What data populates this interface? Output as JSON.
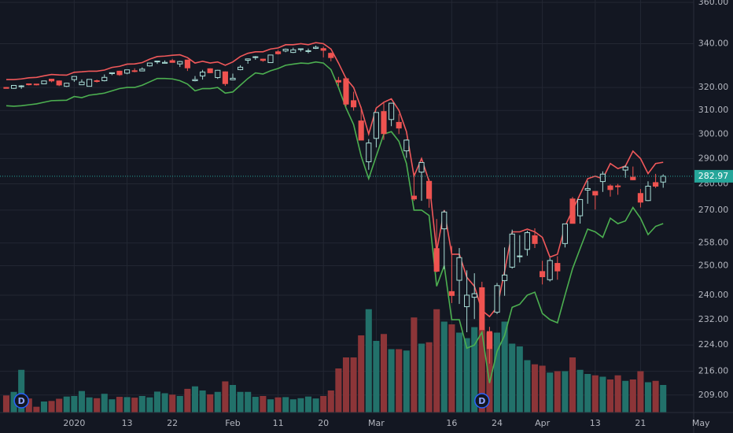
{
  "chart_data": {
    "type": "candlestick",
    "log_scale": true,
    "grid": true,
    "ylim": [
      204,
      361.2
    ],
    "yticks": [
      {
        "value": 360,
        "label": "360.00"
      },
      {
        "value": 340,
        "label": "340.00"
      },
      {
        "value": 320,
        "label": "320.00"
      },
      {
        "value": 310,
        "label": "310.00"
      },
      {
        "value": 300,
        "label": "300.00"
      },
      {
        "value": 290,
        "label": "290.00"
      },
      {
        "value": 280,
        "label": "280.00"
      },
      {
        "value": 270,
        "label": "270.00"
      },
      {
        "value": 258,
        "label": "258.00"
      },
      {
        "value": 250,
        "label": "250.00"
      },
      {
        "value": 240,
        "label": "240.00"
      },
      {
        "value": 232,
        "label": "232.00"
      },
      {
        "value": 224,
        "label": "224.00"
      },
      {
        "value": 216,
        "label": "216.00"
      },
      {
        "value": 209,
        "label": "209.00"
      }
    ],
    "xlim": [
      -0.83,
      91.04
    ],
    "xticks": [
      {
        "value": 9,
        "label": "2020"
      },
      {
        "value": 16,
        "label": "13"
      },
      {
        "value": 22,
        "label": "22"
      },
      {
        "value": 30,
        "label": "Feb"
      },
      {
        "value": 36,
        "label": "11"
      },
      {
        "value": 42,
        "label": "20"
      },
      {
        "value": 49,
        "label": "Mar"
      },
      {
        "value": 59,
        "label": "16"
      },
      {
        "value": 65,
        "label": "24"
      },
      {
        "value": 71,
        "label": "Apr"
      },
      {
        "value": 78,
        "label": "13"
      },
      {
        "value": 84,
        "label": "21"
      },
      {
        "value": 92,
        "label": "May"
      }
    ],
    "open": [
      320.0,
      319.6,
      320.5,
      321.6,
      321.5,
      321.6,
      323.7,
      322.9,
      320.5,
      323.5,
      321.2,
      320.5,
      323.0,
      323.0,
      326.2,
      327.3,
      326.4,
      327.5,
      327.4,
      329.7,
      331.7,
      330.9,
      332.1,
      330.6,
      332.4,
      323.0,
      325.1,
      328.4,
      324.4,
      327.0,
      323.4,
      328.0,
      332.3,
      333.9,
      332.8,
      331.2,
      336.2,
      336.6,
      335.9,
      337.5,
      336.5,
      337.8,
      337.7,
      335.5,
      323.1,
      323.9,
      314.2,
      305.5,
      288.7,
      298.2,
      309.5,
      306.1,
      304.9,
      293.1,
      275.3,
      284.6,
      281.0,
      256.0,
      263.1,
      241.2,
      245.0,
      236.2,
      239.3,
      242.5,
      228.2,
      234.4,
      244.9,
      249.5,
      253.3,
      255.7,
      260.6,
      248.0,
      245.2,
      250.8,
      257.8,
      274.2,
      267.9,
      277.6,
      277.1,
      280.9,
      279.2,
      279.2,
      285.4,
      282.6,
      276.3,
      273.6,
      280.5,
      280.7
    ],
    "high": [
      320.2,
      321.0,
      321.0,
      321.7,
      321.5,
      322.9,
      323.8,
      323.1,
      322.1,
      324.9,
      323.6,
      323.7,
      323.5,
      325.8,
      326.7,
      327.5,
      327.9,
      328.6,
      329.0,
      331.0,
      332.0,
      332.2,
      332.9,
      332.0,
      332.5,
      325.1,
      327.9,
      328.6,
      327.9,
      327.2,
      326.2,
      330.0,
      333.1,
      334.2,
      333.0,
      334.8,
      337.0,
      337.7,
      338.1,
      337.7,
      337.7,
      339.1,
      338.6,
      335.9,
      324.7,
      324.6,
      318.1,
      311.6,
      297.9,
      309.2,
      313.8,
      313.1,
      308.5,
      297.8,
      284.2,
      288.5,
      281.9,
      266.7,
      269.9,
      256.9,
      256.2,
      248.4,
      247.4,
      244.5,
      229.7,
      244.1,
      256.4,
      262.8,
      260.8,
      262.4,
      263.3,
      251.7,
      252.7,
      253.3,
      265.0,
      275.0,
      274.1,
      281.2,
      277.1,
      284.9,
      279.8,
      280.0,
      287.3,
      286.8,
      278.0,
      281.0,
      283.9,
      283.7
    ],
    "low": [
      319.5,
      319.4,
      319.4,
      320.9,
      320.9,
      321.6,
      322.3,
      320.6,
      320.2,
      322.5,
      321.1,
      320.4,
      322.2,
      322.7,
      325.5,
      325.2,
      325.9,
      326.8,
      327.3,
      329.4,
      330.6,
      330.8,
      331.2,
      329.2,
      327.4,
      322.7,
      323.5,
      326.4,
      323.8,
      320.7,
      323.2,
      327.7,
      330.7,
      332.5,
      331.6,
      331.2,
      334.9,
      336.0,
      335.6,
      336.3,
      335.5,
      337.5,
      333.6,
      331.8,
      320.6,
      311.7,
      309.9,
      297.5,
      285.5,
      294.5,
      297.6,
      303.3,
      300.0,
      290.3,
      273.5,
      273.5,
      270.9,
      247.7,
      248.8,
      237.4,
      237.1,
      228.0,
      232.2,
      228.8,
      218.3,
      233.8,
      239.8,
      249.0,
      251.1,
      253.5,
      256.2,
      243.6,
      244.6,
      245.2,
      256.4,
      265.0,
      265.0,
      272.4,
      270.2,
      276.9,
      275.1,
      275.8,
      282.4,
      281.4,
      271.0,
      273.4,
      278.4,
      278.5
    ],
    "close": [
      319.6,
      320.9,
      320.7,
      321.2,
      321.2,
      322.9,
      322.9,
      321.1,
      321.9,
      324.9,
      322.4,
      323.6,
      322.7,
      324.5,
      326.6,
      325.7,
      327.9,
      327.4,
      328.2,
      331.0,
      331.9,
      331.3,
      331.3,
      331.7,
      328.8,
      323.5,
      326.9,
      326.6,
      327.7,
      321.7,
      324.1,
      329.1,
      332.9,
      333.9,
      332.2,
      334.7,
      335.3,
      337.4,
      337.1,
      337.6,
      336.7,
      338.3,
      336.9,
      333.5,
      322.4,
      312.7,
      311.5,
      297.5,
      296.3,
      309.1,
      300.2,
      313.1,
      302.5,
      297.5,
      274.2,
      288.4,
      274.4,
      248.1,
      269.3,
      239.9,
      252.8,
      240.0,
      240.5,
      228.8,
      222.9,
      243.2,
      246.8,
      261.2,
      253.4,
      261.7,
      257.8,
      246.2,
      251.8,
      248.2,
      264.9,
      265.1,
      274.0,
      278.2,
      275.7,
      283.8,
      277.8,
      279.1,
      286.6,
      281.6,
      273.0,
      279.1,
      279.1,
      282.97
    ],
    "volume": [
      62,
      75,
      155,
      51,
      21,
      40,
      42,
      50,
      58,
      60,
      78,
      55,
      52,
      68,
      48,
      57,
      56,
      54,
      60,
      55,
      76,
      70,
      65,
      60,
      86,
      95,
      80,
      66,
      75,
      113,
      100,
      75,
      75,
      57,
      60,
      48,
      55,
      56,
      48,
      52,
      58,
      51,
      60,
      80,
      160,
      200,
      200,
      280,
      375,
      260,
      285,
      230,
      230,
      225,
      345,
      250,
      255,
      375,
      330,
      320,
      290,
      270,
      310,
      300,
      290,
      290,
      330,
      250,
      240,
      190,
      175,
      170,
      145,
      150,
      150,
      200,
      155,
      140,
      135,
      130,
      120,
      135,
      115,
      120,
      150,
      110,
      115,
      100
    ],
    "volume_lim": [
      0,
      400
    ],
    "upper_band": {
      "color": "#f0585a",
      "values": [
        323.5,
        323.5,
        323.8,
        324.3,
        324.5,
        325.2,
        325.8,
        325.6,
        325.5,
        326.8,
        327,
        327.3,
        327.3,
        327.8,
        329,
        329.5,
        330.5,
        330.6,
        331.2,
        332.8,
        334,
        334.2,
        334.6,
        334.8,
        333.5,
        331,
        331.8,
        331,
        331.5,
        330,
        331.5,
        334,
        335.5,
        336.2,
        336.2,
        337.5,
        338,
        339.5,
        339.5,
        340,
        339.5,
        340.5,
        340,
        337.5,
        331,
        324,
        320,
        311,
        300,
        311,
        313.5,
        315,
        310,
        301,
        283,
        290,
        281,
        255,
        270,
        254,
        254,
        246,
        243,
        235,
        233,
        236,
        248,
        262,
        262,
        263,
        262,
        260,
        253,
        254,
        264,
        270,
        276,
        282,
        283,
        282,
        288,
        286,
        287,
        293,
        290,
        284,
        288,
        288.5
      ]
    },
    "lower_band": {
      "color": "#4caf50",
      "values": [
        312,
        311.8,
        312,
        312.4,
        312.8,
        313.5,
        314.2,
        314.3,
        314.4,
        316,
        315.5,
        316.6,
        317,
        317.5,
        318.5,
        319.5,
        320,
        320,
        321,
        322.5,
        324,
        324,
        323.8,
        323,
        321.5,
        318.5,
        319.5,
        319.5,
        320,
        317.5,
        318,
        321,
        324,
        326.5,
        326,
        327.5,
        328.5,
        330,
        330.5,
        331,
        330.8,
        331.5,
        331,
        328,
        320,
        311,
        304,
        291,
        282,
        291,
        300,
        301,
        297,
        288,
        270,
        270,
        268,
        243,
        250,
        232,
        232,
        223,
        224,
        228,
        212.5,
        222,
        227,
        236,
        237,
        240,
        241,
        234,
        232,
        231,
        240,
        249,
        256,
        263,
        262,
        260,
        267,
        265,
        266,
        271,
        267,
        261,
        264,
        265
      ]
    },
    "up_color": "#a9ddd6",
    "down_color": "#ef5350",
    "volume_up_color": "#22716a",
    "volume_down_color": "#8c3538",
    "price_line_color": "#26a69a",
    "events": [
      {
        "x": 2,
        "label": "D"
      },
      {
        "x": 63,
        "label": "D"
      }
    ]
  }
}
